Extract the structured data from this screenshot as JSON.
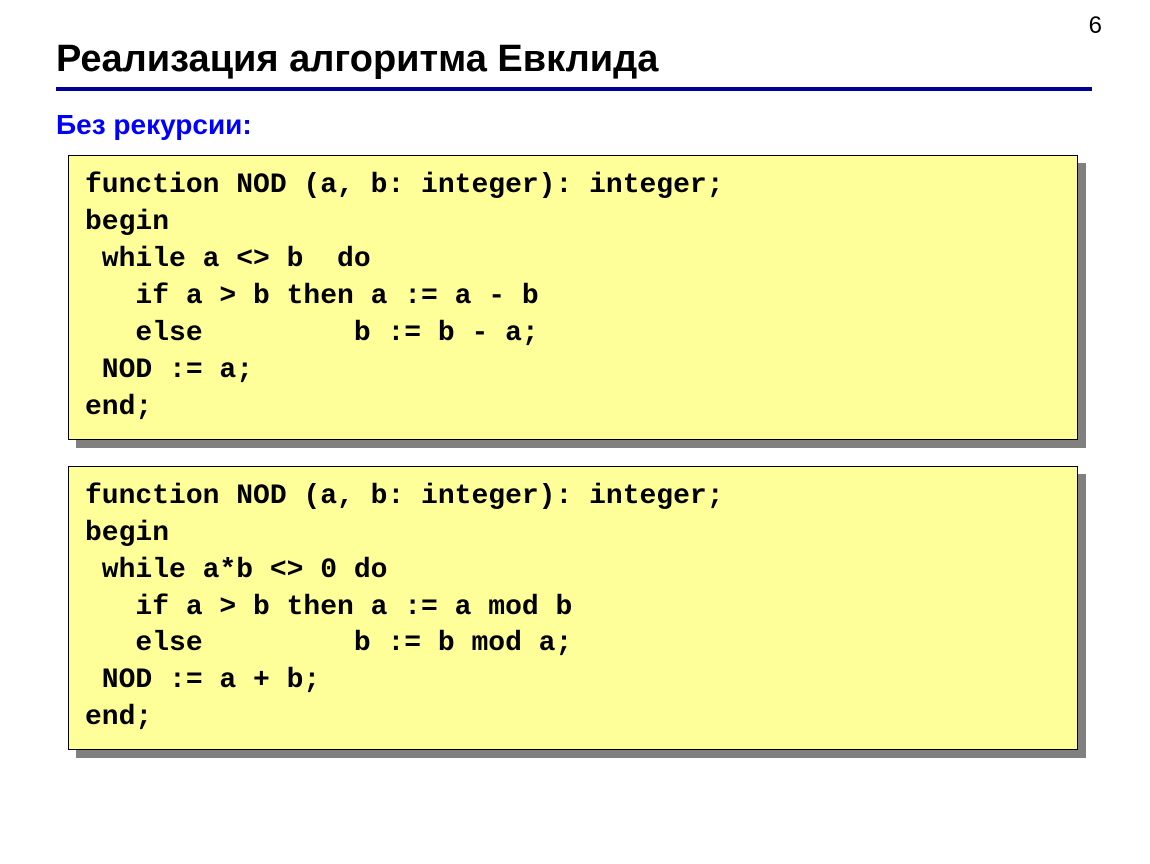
{
  "page_number": "6",
  "title": "Реализация алгоритма Евклида",
  "subtitle": "Без рекурсии:",
  "code_block_1": "function NOD (a, b: integer): integer;\nbegin\n while a <> b  do\n   if a > b then a := a - b\n   else         b := b - a;\n NOD := a;\nend;",
  "code_block_2": "function NOD (a, b: integer): integer;\nbegin\n while a*b <> 0 do\n   if a > b then a := a mod b\n   else         b := b mod a;\n NOD := a + b;\nend;",
  "style": {
    "background_color": "#ffffff",
    "title_color": "#000000",
    "title_fontsize": 38,
    "rule_color": "#000099",
    "rule_width": 4,
    "subtitle_color": "#0000ff",
    "subtitle_fontsize": 28,
    "code_background": "#ffff99",
    "code_border_color": "#000000",
    "code_shadow_color": "#808080",
    "code_font": "Courier New",
    "code_fontsize": 28,
    "code_fontweight": "bold",
    "page_number_fontsize": 24
  }
}
